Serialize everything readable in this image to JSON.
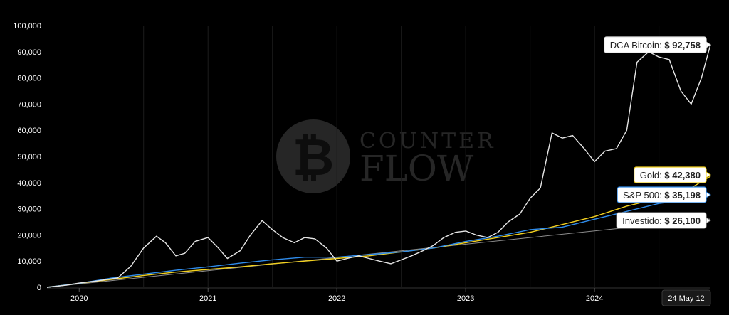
{
  "watermark": {
    "line1": "COUNTER",
    "line2": "FLOW",
    "logo_icon": "bitcoin-icon"
  },
  "crosshair_date": "24 May 12",
  "tooltips": [
    {
      "label": "DCA Bitcoin:",
      "value": "$ 92,758",
      "series": "dca_bitcoin"
    },
    {
      "label": "Gold:",
      "value": "$ 42,380",
      "series": "gold"
    },
    {
      "label": "S&P 500:",
      "value": "$ 35,198",
      "series": "sp500"
    },
    {
      "label": "Investido:",
      "value": "$ 26,100",
      "series": "investido"
    }
  ],
  "colors": {
    "dca_bitcoin": "#e6e6e6",
    "gold": "#f2d01f",
    "sp500": "#2f8bea",
    "investido": "#8c8c8c"
  },
  "chart_data": {
    "type": "line",
    "x_ticks": [
      "2020",
      "2021",
      "2022",
      "2023",
      "2024"
    ],
    "x_tick_years": [
      2020,
      2021,
      2022,
      2023,
      2024
    ],
    "y_ticks": [
      "0",
      "10,000",
      "20,000",
      "30,000",
      "40,000",
      "50,000",
      "60,000",
      "70,000",
      "80,000",
      "90,000",
      "100,000"
    ],
    "xlim": [
      2019.75,
      2024.9
    ],
    "ylim": [
      0,
      100000
    ],
    "grid": "vertical",
    "series": [
      {
        "key": "dca_bitcoin",
        "name": "DCA Bitcoin",
        "x": [
          2019.75,
          2019.9,
          2020.0,
          2020.15,
          2020.3,
          2020.4,
          2020.5,
          2020.6,
          2020.67,
          2020.75,
          2020.82,
          2020.9,
          2021.0,
          2021.08,
          2021.15,
          2021.25,
          2021.33,
          2021.42,
          2021.5,
          2021.58,
          2021.67,
          2021.75,
          2021.83,
          2021.92,
          2022.0,
          2022.08,
          2022.17,
          2022.25,
          2022.33,
          2022.42,
          2022.5,
          2022.58,
          2022.67,
          2022.75,
          2022.83,
          2022.92,
          2023.0,
          2023.08,
          2023.17,
          2023.25,
          2023.33,
          2023.42,
          2023.5,
          2023.58,
          2023.67,
          2023.75,
          2023.83,
          2023.92,
          2024.0,
          2024.08,
          2024.17,
          2024.25,
          2024.33,
          2024.42,
          2024.5,
          2024.58,
          2024.67,
          2024.75,
          2024.83,
          2024.9
        ],
        "values": [
          0,
          800,
          1600,
          2500,
          3600,
          8000,
          15000,
          19500,
          17000,
          12000,
          13000,
          17500,
          19000,
          15000,
          11000,
          14000,
          20000,
          25500,
          22000,
          19000,
          17000,
          19000,
          18500,
          15000,
          10000,
          11000,
          12000,
          11000,
          10000,
          9000,
          10500,
          12000,
          14000,
          16000,
          19000,
          21000,
          21500,
          20000,
          19000,
          21000,
          25000,
          28000,
          34000,
          38000,
          59000,
          57000,
          58000,
          53000,
          48000,
          52000,
          53000,
          60000,
          86000,
          90000,
          88000,
          87000,
          75000,
          70000,
          80000,
          92758
        ]
      },
      {
        "key": "gold",
        "name": "Gold",
        "x": [
          2019.75,
          2020.0,
          2020.25,
          2020.5,
          2020.75,
          2021.0,
          2021.25,
          2021.5,
          2021.75,
          2022.0,
          2022.25,
          2022.5,
          2022.75,
          2023.0,
          2023.25,
          2023.5,
          2023.75,
          2024.0,
          2024.25,
          2024.5,
          2024.75,
          2024.9
        ],
        "values": [
          0,
          1500,
          3000,
          4500,
          5800,
          6800,
          7800,
          9000,
          10000,
          11000,
          12000,
          13500,
          15000,
          17000,
          19000,
          21000,
          24000,
          27000,
          31000,
          34000,
          38000,
          42380
        ]
      },
      {
        "key": "sp500",
        "name": "S&P 500",
        "x": [
          2019.75,
          2020.0,
          2020.25,
          2020.5,
          2020.75,
          2021.0,
          2021.25,
          2021.5,
          2021.75,
          2022.0,
          2022.25,
          2022.5,
          2022.75,
          2023.0,
          2023.25,
          2023.5,
          2023.75,
          2024.0,
          2024.25,
          2024.5,
          2024.75,
          2024.9
        ],
        "values": [
          0,
          1500,
          3500,
          5000,
          6500,
          7800,
          9200,
          10500,
          11500,
          11500,
          12500,
          13500,
          15000,
          17500,
          19500,
          22000,
          23000,
          26000,
          29000,
          32000,
          33500,
          35198
        ]
      },
      {
        "key": "investido",
        "name": "Investido",
        "x": [
          2019.75,
          2024.9
        ],
        "values": [
          0,
          26100
        ]
      }
    ]
  }
}
